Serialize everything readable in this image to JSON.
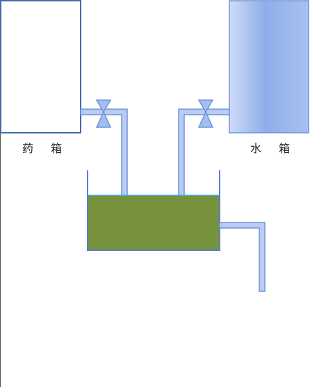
{
  "tanks": {
    "medicine": {
      "label": "药 箱"
    },
    "water": {
      "label": "水 箱"
    }
  },
  "colors": {
    "page_background": "#ffffff",
    "tank_border": "#3f6ea8",
    "pipe_fill": "#b9cdf2",
    "pipe_stroke": "#6f93d8",
    "valve_fill": "#a3bff0",
    "valve_stroke": "#6f93d8",
    "water_tank_light": "#cfdcf6",
    "water_tank_dark": "#8eaeea",
    "mixing_liquid": "#76923c",
    "liquid_surface": "#4bacc6",
    "mixing_tank_wall": "#5b7fd0"
  }
}
